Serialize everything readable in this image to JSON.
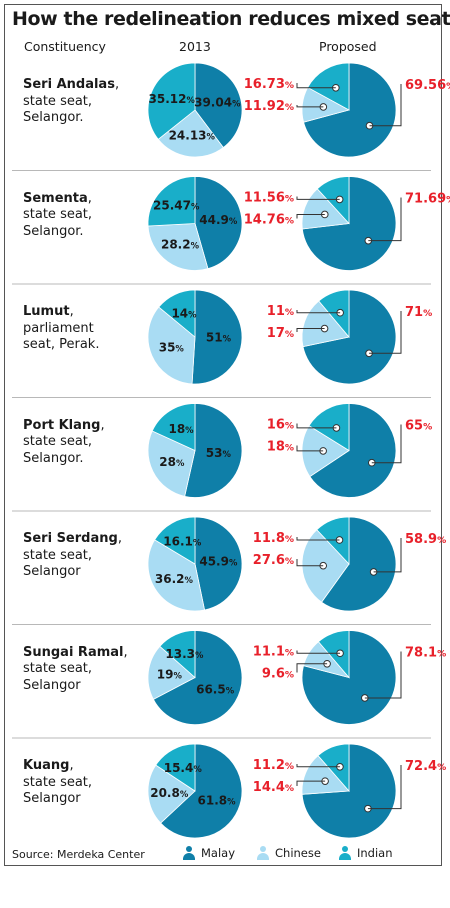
{
  "title": "How the redelineation reduces mixed seats",
  "headers": {
    "constituency": "Constituency",
    "year": "2013",
    "proposed": "Proposed"
  },
  "source": "Source: Merdeka Center",
  "colors": {
    "malay": "#0f7fa8",
    "chinese": "#a9dcf3",
    "indian": "#19aec9",
    "highlight": "#e8202a"
  },
  "legend": [
    {
      "name": "Malay",
      "color": "#0f7fa8",
      "icon": "person-icon"
    },
    {
      "name": "Chinese",
      "color": "#a9dcf3",
      "icon": "person-icon"
    },
    {
      "name": "Indian",
      "color": "#19aec9",
      "icon": "person-icon"
    }
  ],
  "rows": [
    {
      "name": "Seri Andalas",
      "desc": [
        "state seat,",
        "Selangor."
      ]
    },
    {
      "name": "Sementa",
      "desc": [
        "state seat,",
        "Selangor."
      ]
    },
    {
      "name": "Lumut",
      "desc": [
        "parliament",
        "seat, Perak."
      ]
    },
    {
      "name": "Port Klang",
      "desc": [
        "state seat,",
        "Selangor."
      ]
    },
    {
      "name": "Seri Serdang",
      "desc": [
        "state seat,",
        "Selangor"
      ]
    },
    {
      "name": "Sungai Ramal",
      "desc": [
        "state seat,",
        "Selangor"
      ]
    },
    {
      "name": "Kuang",
      "desc": [
        "state seat,",
        "Selangor"
      ]
    }
  ],
  "chart_data": [
    {
      "type": "pie",
      "constituency": "Seri Andalas",
      "year": "2013",
      "categories": [
        "Malay",
        "Chinese",
        "Indian"
      ],
      "values": [
        39.04,
        24.13,
        35.12
      ],
      "labels": [
        "39.04%",
        "24.13%",
        "35.12%"
      ]
    },
    {
      "type": "pie",
      "constituency": "Seri Andalas",
      "year": "Proposed",
      "categories": [
        "Malay",
        "Chinese",
        "Indian"
      ],
      "values": [
        69.56,
        11.92,
        16.73
      ],
      "labels": [
        "69.56%",
        "11.92%",
        "16.73%"
      ]
    },
    {
      "type": "pie",
      "constituency": "Sementa",
      "year": "2013",
      "categories": [
        "Malay",
        "Chinese",
        "Indian"
      ],
      "values": [
        44.9,
        28.2,
        25.47
      ],
      "labels": [
        "44.9%",
        "28.2%",
        "25.47%"
      ]
    },
    {
      "type": "pie",
      "constituency": "Sementa",
      "year": "Proposed",
      "categories": [
        "Malay",
        "Chinese",
        "Indian"
      ],
      "values": [
        71.69,
        14.76,
        11.56
      ],
      "labels": [
        "71.69%",
        "14.76%",
        "11.56%"
      ]
    },
    {
      "type": "pie",
      "constituency": "Lumut",
      "year": "2013",
      "categories": [
        "Malay",
        "Chinese",
        "Indian"
      ],
      "values": [
        51,
        35,
        14
      ],
      "labels": [
        "51%",
        "35%",
        "14%"
      ]
    },
    {
      "type": "pie",
      "constituency": "Lumut",
      "year": "Proposed",
      "categories": [
        "Malay",
        "Chinese",
        "Indian"
      ],
      "values": [
        71,
        17,
        11
      ],
      "labels": [
        "71%",
        "17%",
        "11%"
      ]
    },
    {
      "type": "pie",
      "constituency": "Port Klang",
      "year": "2013",
      "categories": [
        "Malay",
        "Chinese",
        "Indian"
      ],
      "values": [
        53,
        28,
        18
      ],
      "labels": [
        "53%",
        "28%",
        "18%"
      ]
    },
    {
      "type": "pie",
      "constituency": "Port Klang",
      "year": "Proposed",
      "categories": [
        "Malay",
        "Chinese",
        "Indian"
      ],
      "values": [
        65,
        18,
        16
      ],
      "labels": [
        "65%",
        "18%",
        "16%"
      ]
    },
    {
      "type": "pie",
      "constituency": "Seri Serdang",
      "year": "2013",
      "categories": [
        "Malay",
        "Chinese",
        "Indian"
      ],
      "values": [
        45.9,
        36.2,
        16.1
      ],
      "labels": [
        "45.9%",
        "36.2%",
        "16.1%"
      ]
    },
    {
      "type": "pie",
      "constituency": "Seri Serdang",
      "year": "Proposed",
      "categories": [
        "Malay",
        "Chinese",
        "Indian"
      ],
      "values": [
        58.9,
        27.6,
        11.8
      ],
      "labels": [
        "58.9%",
        "27.6%",
        "11.8%"
      ]
    },
    {
      "type": "pie",
      "constituency": "Sungai Ramal",
      "year": "2013",
      "categories": [
        "Malay",
        "Chinese",
        "Indian"
      ],
      "values": [
        66.5,
        19,
        13.3
      ],
      "labels": [
        "66.5%",
        "19%",
        "13.3%"
      ]
    },
    {
      "type": "pie",
      "constituency": "Sungai Ramal",
      "year": "Proposed",
      "categories": [
        "Malay",
        "Chinese",
        "Indian"
      ],
      "values": [
        78.1,
        9.6,
        11.1
      ],
      "labels": [
        "78.1%",
        "9.6%",
        "11.1%"
      ]
    },
    {
      "type": "pie",
      "constituency": "Kuang",
      "year": "2013",
      "categories": [
        "Malay",
        "Chinese",
        "Indian"
      ],
      "values": [
        61.8,
        20.8,
        15.4
      ],
      "labels": [
        "61.8%",
        "20.8%",
        "15.4%"
      ]
    },
    {
      "type": "pie",
      "constituency": "Kuang",
      "year": "Proposed",
      "categories": [
        "Malay",
        "Chinese",
        "Indian"
      ],
      "values": [
        72.4,
        14.4,
        11.2
      ],
      "labels": [
        "72.4%",
        "14.4%",
        "11.2%"
      ]
    }
  ]
}
